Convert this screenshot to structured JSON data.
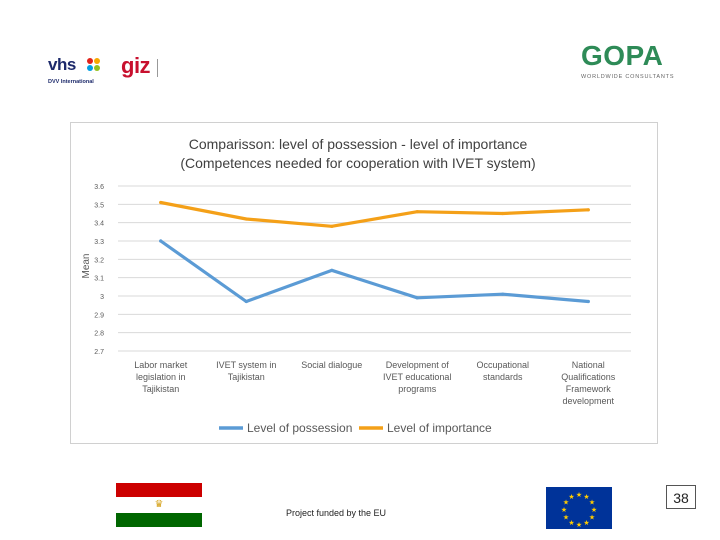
{
  "logos": {
    "vhs_text": "vhs",
    "vhs_sub": "DVV International",
    "giz_text": "giz",
    "giz_sub": "",
    "gopa_text": "GOPA",
    "gopa_sub": "WORLDWIDE CONSULTANTS"
  },
  "footer": {
    "funded_text": "Project funded by the EU",
    "page_number": "38"
  },
  "colors": {
    "possession": "#5B9BD5",
    "importance": "#F4A018",
    "grid": "#d9d9d9",
    "text": "#595959"
  },
  "chart_data": {
    "type": "line",
    "title": "Comparisson: level of possession - level of importance",
    "subtitle": "(Competences needed for cooperation with IVET system)",
    "xlabel": "",
    "ylabel": "Mean",
    "ylim": [
      2.7,
      3.6
    ],
    "yticks": [
      "2.7",
      "2.8",
      "2.9",
      "3",
      "3.1",
      "3.2",
      "3.3",
      "3.4",
      "3.5",
      "3.6"
    ],
    "grid": true,
    "legend_position": "bottom",
    "categories": [
      [
        "Labor market",
        "legislation in",
        "Tajikistan"
      ],
      [
        "IVET system in",
        "Tajikistan"
      ],
      [
        "Social dialogue"
      ],
      [
        "Development of",
        "IVET educational",
        "programs"
      ],
      [
        "Occupational",
        "standards"
      ],
      [
        "National",
        "Qualifications",
        "Framework",
        "development"
      ]
    ],
    "series": [
      {
        "name": "Level of possession",
        "values": [
          3.3,
          2.97,
          3.14,
          2.99,
          3.01,
          2.97
        ]
      },
      {
        "name": "Level of importance",
        "values": [
          3.51,
          3.42,
          3.38,
          3.46,
          3.45,
          3.47
        ]
      }
    ]
  }
}
